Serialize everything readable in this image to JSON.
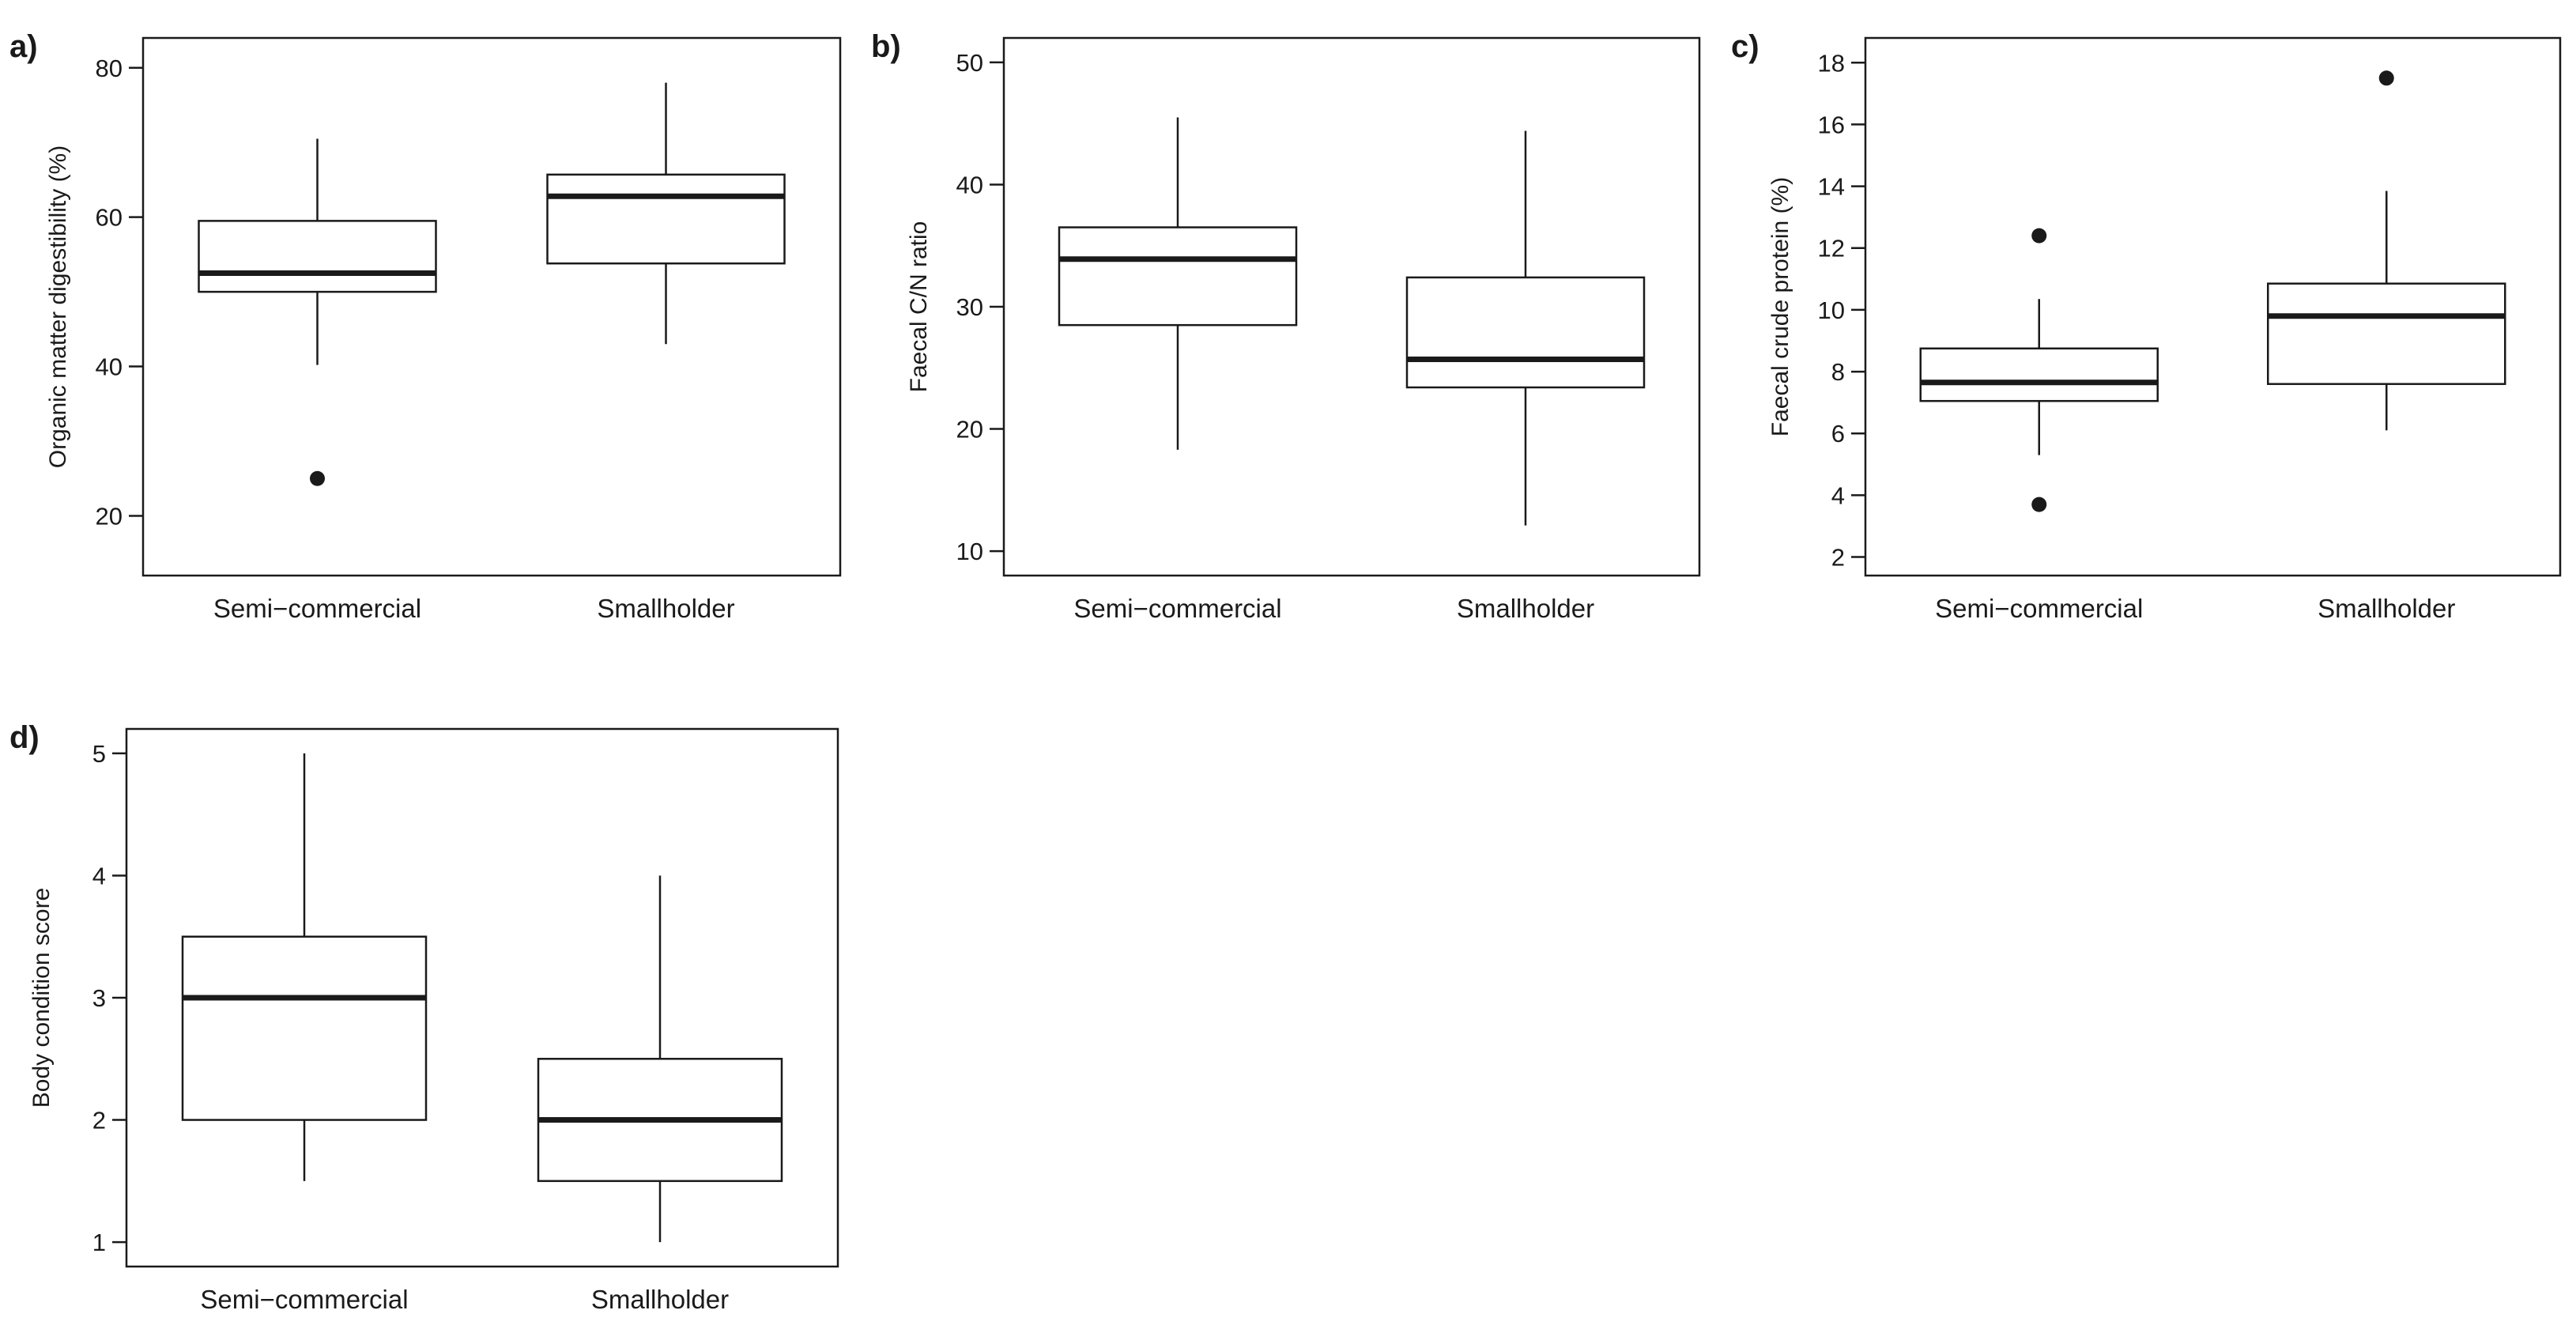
{
  "chart_data": [
    {
      "type": "boxplot",
      "panel": "a)",
      "title": "",
      "xlabel": "",
      "ylabel": "Organic matter digestibility (%)",
      "ylim": [
        12,
        84
      ],
      "yticks": [
        20,
        40,
        60,
        80
      ],
      "categories": [
        "Semi−commercial",
        "Smallholder"
      ],
      "boxes": [
        {
          "whisker_low": 40.2,
          "q1": 50.0,
          "median": 52.5,
          "q3": 59.5,
          "whisker_high": 70.5,
          "outliers": [
            25.0
          ]
        },
        {
          "whisker_low": 43.0,
          "q1": 53.8,
          "median": 62.8,
          "q3": 65.7,
          "whisker_high": 78.0,
          "outliers": []
        }
      ]
    },
    {
      "type": "boxplot",
      "panel": "b)",
      "title": "",
      "xlabel": "",
      "ylabel": "Faecal C/N ratio",
      "ylim": [
        8,
        52
      ],
      "yticks": [
        10,
        20,
        30,
        40,
        50
      ],
      "categories": [
        "Semi−commercial",
        "Smallholder"
      ],
      "boxes": [
        {
          "whisker_low": 18.3,
          "q1": 28.5,
          "median": 33.9,
          "q3": 36.5,
          "whisker_high": 45.5,
          "outliers": []
        },
        {
          "whisker_low": 12.1,
          "q1": 23.4,
          "median": 25.7,
          "q3": 32.4,
          "whisker_high": 44.4,
          "outliers": []
        }
      ]
    },
    {
      "type": "boxplot",
      "panel": "c)",
      "title": "",
      "xlabel": "",
      "ylabel": "Faecal crude protein (%)",
      "ylim": [
        1.4,
        18.8
      ],
      "yticks": [
        2,
        4,
        6,
        8,
        10,
        12,
        14,
        16,
        18
      ],
      "categories": [
        "Semi−commercial",
        "Smallholder"
      ],
      "boxes": [
        {
          "whisker_low": 5.3,
          "q1": 7.05,
          "median": 7.65,
          "q3": 8.75,
          "whisker_high": 10.35,
          "outliers": [
            12.4,
            3.7
          ]
        },
        {
          "whisker_low": 6.1,
          "q1": 7.6,
          "median": 9.8,
          "q3": 10.85,
          "whisker_high": 13.85,
          "outliers": [
            17.5
          ]
        }
      ]
    },
    {
      "type": "boxplot",
      "panel": "d)",
      "title": "",
      "xlabel": "",
      "ylabel": "Body condition score",
      "ylim": [
        0.8,
        5.2
      ],
      "yticks": [
        1,
        2,
        3,
        4,
        5
      ],
      "categories": [
        "Semi−commercial",
        "Smallholder"
      ],
      "boxes": [
        {
          "whisker_low": 1.5,
          "q1": 2.0,
          "median": 3.0,
          "q3": 3.5,
          "whisker_high": 5.0,
          "outliers": []
        },
        {
          "whisker_low": 1.0,
          "q1": 1.5,
          "median": 2.0,
          "q3": 2.5,
          "whisker_high": 4.0,
          "outliers": []
        }
      ]
    }
  ]
}
